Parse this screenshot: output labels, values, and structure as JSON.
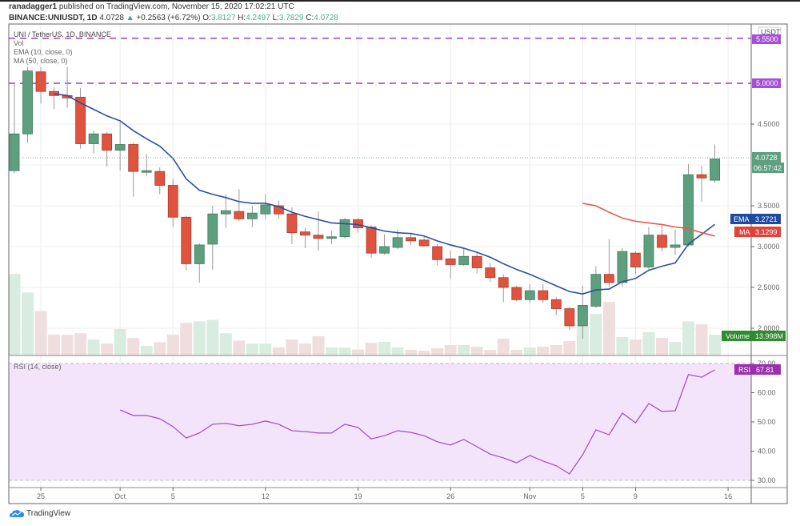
{
  "header": {
    "author": "ranadagger1",
    "published": "published on TradingView.com, November 15, 2020 17:02:21 UTC",
    "symbol": "BINANCE:UNIUSDT, 1D",
    "last": "4.0728",
    "change": "+0.2563 (+6.72%)",
    "o_label": "O:",
    "o": "3.8127",
    "h_label": "H:",
    "h": "4.2497",
    "l_label": "L:",
    "l": "3.7829",
    "c_label": "C:",
    "c": "4.0728"
  },
  "legend": {
    "title": "UNI / TetherUS, 1D, BINANCE",
    "vol": "Vol",
    "ema": "EMA (10, close, 0)",
    "ma": "MA (50, close, 0)",
    "rsi": "RSI (14, close)"
  },
  "axis": {
    "currency": "USDT",
    "price_ticks": [
      "4.5000",
      "3.5000",
      "3.0000",
      "2.5000",
      "2.0000"
    ],
    "rsi_ticks": [
      "70.00",
      "60.00",
      "50.00",
      "40.00",
      "30.00"
    ],
    "hlines": [
      {
        "label": "5.5500",
        "value": 5.55
      },
      {
        "label": "5.0000",
        "value": 5.0
      }
    ],
    "last_price": "4.0728",
    "countdown": "06:57:42",
    "ema_tag": "EMA",
    "ema_value": "3.2721",
    "ma_tag": "MA",
    "ma_value": "3.1299",
    "volume_tag": "Volume",
    "volume_value": "13.998M",
    "rsi_tag": "RSI",
    "rsi_value": "67.81",
    "date_ticks": [
      {
        "label": "25",
        "index": 2
      },
      {
        "label": "Oct",
        "index": 8
      },
      {
        "label": "5",
        "index": 12
      },
      {
        "label": "12",
        "index": 19
      },
      {
        "label": "19",
        "index": 26
      },
      {
        "label": "26",
        "index": 33
      },
      {
        "label": "Nov",
        "index": 39
      },
      {
        "label": "5",
        "index": 43
      },
      {
        "label": "9",
        "index": 47
      },
      {
        "label": "16",
        "index": 54
      }
    ]
  },
  "colors": {
    "up": "#5d9f7e",
    "down": "#e0533f",
    "ema": "#2a4f9e",
    "ma": "#e8584a",
    "rsi": "#9c4dbf",
    "hline": "#b36ad9",
    "rsi_bg": "#f3e3fb",
    "volume_tag": "#2e8b2e"
  },
  "branding": {
    "logo": "TradingView"
  },
  "chart_data": {
    "type": "candlestick",
    "x": [
      "Sep 23",
      "Sep 24",
      "Sep 25",
      "Sep 26",
      "Sep 27",
      "Sep 28",
      "Sep 29",
      "Sep 30",
      "Oct 1",
      "Oct 2",
      "Oct 3",
      "Oct 4",
      "Oct 5",
      "Oct 6",
      "Oct 7",
      "Oct 8",
      "Oct 9",
      "Oct 10",
      "Oct 11",
      "Oct 12",
      "Oct 13",
      "Oct 14",
      "Oct 15",
      "Oct 16",
      "Oct 17",
      "Oct 18",
      "Oct 19",
      "Oct 20",
      "Oct 21",
      "Oct 22",
      "Oct 23",
      "Oct 24",
      "Oct 25",
      "Oct 26",
      "Oct 27",
      "Oct 28",
      "Oct 29",
      "Oct 30",
      "Oct 31",
      "Nov 1",
      "Nov 2",
      "Nov 3",
      "Nov 4",
      "Nov 5",
      "Nov 6",
      "Nov 7",
      "Nov 8",
      "Nov 9",
      "Nov 10",
      "Nov 11",
      "Nov 12",
      "Nov 13",
      "Nov 14",
      "Nov 15"
    ],
    "ohlc": [
      [
        3.93,
        5.0,
        3.9,
        4.38
      ],
      [
        4.38,
        5.2,
        4.27,
        5.15
      ],
      [
        5.14,
        5.2,
        4.75,
        4.9
      ],
      [
        4.9,
        4.95,
        4.68,
        4.85
      ],
      [
        4.85,
        5.2,
        4.7,
        4.82
      ],
      [
        4.83,
        4.94,
        4.2,
        4.26
      ],
      [
        4.26,
        4.42,
        4.14,
        4.38
      ],
      [
        4.38,
        4.4,
        3.98,
        4.18
      ],
      [
        4.18,
        4.52,
        3.93,
        4.25
      ],
      [
        4.25,
        4.27,
        3.61,
        3.92
      ],
      [
        3.91,
        4.13,
        3.86,
        3.93
      ],
      [
        3.92,
        3.97,
        3.64,
        3.75
      ],
      [
        3.75,
        3.83,
        3.24,
        3.36
      ],
      [
        3.36,
        3.38,
        2.71,
        2.79
      ],
      [
        2.79,
        3.04,
        2.56,
        3.02
      ],
      [
        3.03,
        3.5,
        2.72,
        3.4
      ],
      [
        3.4,
        3.64,
        3.23,
        3.44
      ],
      [
        3.43,
        3.7,
        3.31,
        3.34
      ],
      [
        3.34,
        3.5,
        3.24,
        3.41
      ],
      [
        3.4,
        3.64,
        3.33,
        3.51
      ],
      [
        3.5,
        3.56,
        3.34,
        3.4
      ],
      [
        3.4,
        3.48,
        3.03,
        3.17
      ],
      [
        3.18,
        3.23,
        2.98,
        3.14
      ],
      [
        3.14,
        3.43,
        2.95,
        3.1
      ],
      [
        3.1,
        3.19,
        3.03,
        3.12
      ],
      [
        3.12,
        3.35,
        3.1,
        3.33
      ],
      [
        3.33,
        3.35,
        3.17,
        3.23
      ],
      [
        3.24,
        3.26,
        2.86,
        2.92
      ],
      [
        2.92,
        3.15,
        2.9,
        3.0
      ],
      [
        2.99,
        3.21,
        2.97,
        3.11
      ],
      [
        3.11,
        3.17,
        3.02,
        3.07
      ],
      [
        3.08,
        3.12,
        3.0,
        3.01
      ],
      [
        3.0,
        3.03,
        2.77,
        2.84
      ],
      [
        2.85,
        2.95,
        2.61,
        2.78
      ],
      [
        2.78,
        2.98,
        2.76,
        2.88
      ],
      [
        2.88,
        2.92,
        2.67,
        2.74
      ],
      [
        2.74,
        2.8,
        2.57,
        2.62
      ],
      [
        2.62,
        2.66,
        2.32,
        2.5
      ],
      [
        2.5,
        2.52,
        2.33,
        2.35
      ],
      [
        2.35,
        2.54,
        2.31,
        2.46
      ],
      [
        2.46,
        2.54,
        2.31,
        2.35
      ],
      [
        2.35,
        2.38,
        2.16,
        2.24
      ],
      [
        2.24,
        2.26,
        1.98,
        2.03
      ],
      [
        2.03,
        2.52,
        1.87,
        2.28
      ],
      [
        2.27,
        2.76,
        2.25,
        2.66
      ],
      [
        2.66,
        3.09,
        2.51,
        2.56
      ],
      [
        2.56,
        2.98,
        2.51,
        2.94
      ],
      [
        2.92,
        2.94,
        2.66,
        2.75
      ],
      [
        2.75,
        3.24,
        2.72,
        3.14
      ],
      [
        3.14,
        3.27,
        2.94,
        2.99
      ],
      [
        2.99,
        3.21,
        2.9,
        3.02
      ],
      [
        3.02,
        4.01,
        3.0,
        3.88
      ],
      [
        3.88,
        3.99,
        3.55,
        3.84
      ],
      [
        3.8127,
        4.2497,
        3.7829,
        4.0728
      ]
    ],
    "volume_millions": [
      55,
      42.5,
      30,
      14,
      14,
      15,
      10.8,
      8,
      17.8,
      11.8,
      6.5,
      9,
      14,
      22,
      23,
      24,
      15,
      10,
      8,
      8,
      5.4,
      10.8,
      8,
      13,
      5.4,
      5.4,
      4,
      8.6,
      9.2,
      5.4,
      3.8,
      3.2,
      4.9,
      7,
      7,
      5.9,
      3.8,
      11.3,
      3.8,
      5.4,
      5.9,
      7,
      9.7,
      20,
      28,
      36,
      12.4,
      10.8,
      15.7,
      11.9,
      9.2,
      23,
      21,
      13.998
    ],
    "ema10_start_index": 3,
    "ema10": [
      4.87,
      4.85,
      4.76,
      4.68,
      4.6,
      4.54,
      4.42,
      4.32,
      4.23,
      4.08,
      3.83,
      3.69,
      3.64,
      3.6,
      3.55,
      3.53,
      3.53,
      3.49,
      3.42,
      3.37,
      3.33,
      3.29,
      3.28,
      3.27,
      3.23,
      3.19,
      3.17,
      3.16,
      3.13,
      3.07,
      3.02,
      2.98,
      2.93,
      2.87,
      2.79,
      2.72,
      2.66,
      2.59,
      2.52,
      2.45,
      2.42,
      2.47,
      2.48,
      2.57,
      2.61,
      2.71,
      2.76,
      2.8,
      3.03,
      3.15,
      3.2721
    ],
    "ma50_start_index": 43,
    "ma50": [
      3.53,
      3.5,
      3.42,
      3.35,
      3.31,
      3.29,
      3.27,
      3.24,
      3.22,
      3.17,
      3.1299
    ],
    "rsi14_start_index": 8,
    "rsi14": [
      54.1,
      52.2,
      52.2,
      51.1,
      48.4,
      44.5,
      46.2,
      49.2,
      49.5,
      48.7,
      49.2,
      50.3,
      49.2,
      47.0,
      46.7,
      46.2,
      46.2,
      49.2,
      48.1,
      44.2,
      45.3,
      47.0,
      46.4,
      45.3,
      43.2,
      42.1,
      44.0,
      41.5,
      39.0,
      37.7,
      36.0,
      38.5,
      36.6,
      35.0,
      32.2,
      38.8,
      47.3,
      45.6,
      53.0,
      49.7,
      56.3,
      53.6,
      53.8,
      66.2,
      65.3,
      67.81
    ],
    "price_ylim": [
      1.7,
      5.65
    ],
    "rsi_ylim": [
      30,
      70
    ],
    "grid": true
  }
}
